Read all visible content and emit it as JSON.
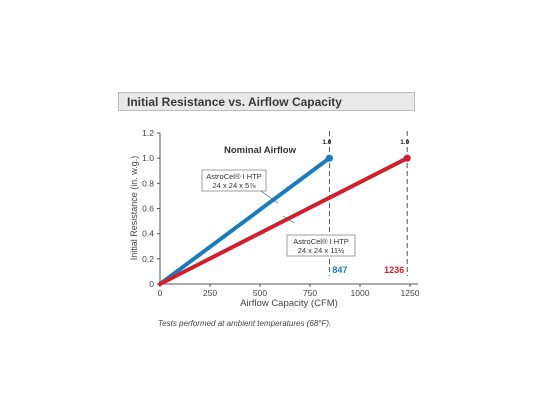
{
  "chart_data": {
    "type": "line",
    "title": "Initial Resistance vs. Airflow Capacity",
    "xlabel": "Airflow Capacity (CFM)",
    "ylabel": "Initial Resistance (in. w.g.)",
    "xlim": [
      0,
      1250
    ],
    "ylim": [
      0,
      1.2
    ],
    "x_ticks": [
      "0",
      "250",
      "500",
      "750",
      "1000",
      "1250"
    ],
    "y_ticks": [
      "0",
      "0.2",
      "0.4",
      "0.6",
      "0.8",
      "1.0",
      "1.2"
    ],
    "grid": false,
    "series": [
      {
        "name": "AstroCel® I HTP 24 x 24 x 5⅞",
        "color": "#1a7bbf",
        "x": [
          0,
          847
        ],
        "y": [
          0,
          1.0
        ],
        "end_label": "1.0",
        "x_marker_label": "847"
      },
      {
        "name": "AstroCel® I HTP 24 x 24 x 11½",
        "color": "#d0202e",
        "x": [
          0,
          1236
        ],
        "y": [
          0,
          1.0
        ],
        "end_label": "1.0",
        "x_marker_label": "1236"
      }
    ],
    "annotations": {
      "heading": "Nominal Airflow",
      "callout_1_line1": "AstroCel® I HTP",
      "callout_1_line2": "24 x 24 x 5⅞",
      "callout_2_line1": "AstroCel® I HTP",
      "callout_2_line2": "24 x 24 x 11½"
    }
  },
  "footnote": "Tests performed at ambient temperatures (68°F)."
}
